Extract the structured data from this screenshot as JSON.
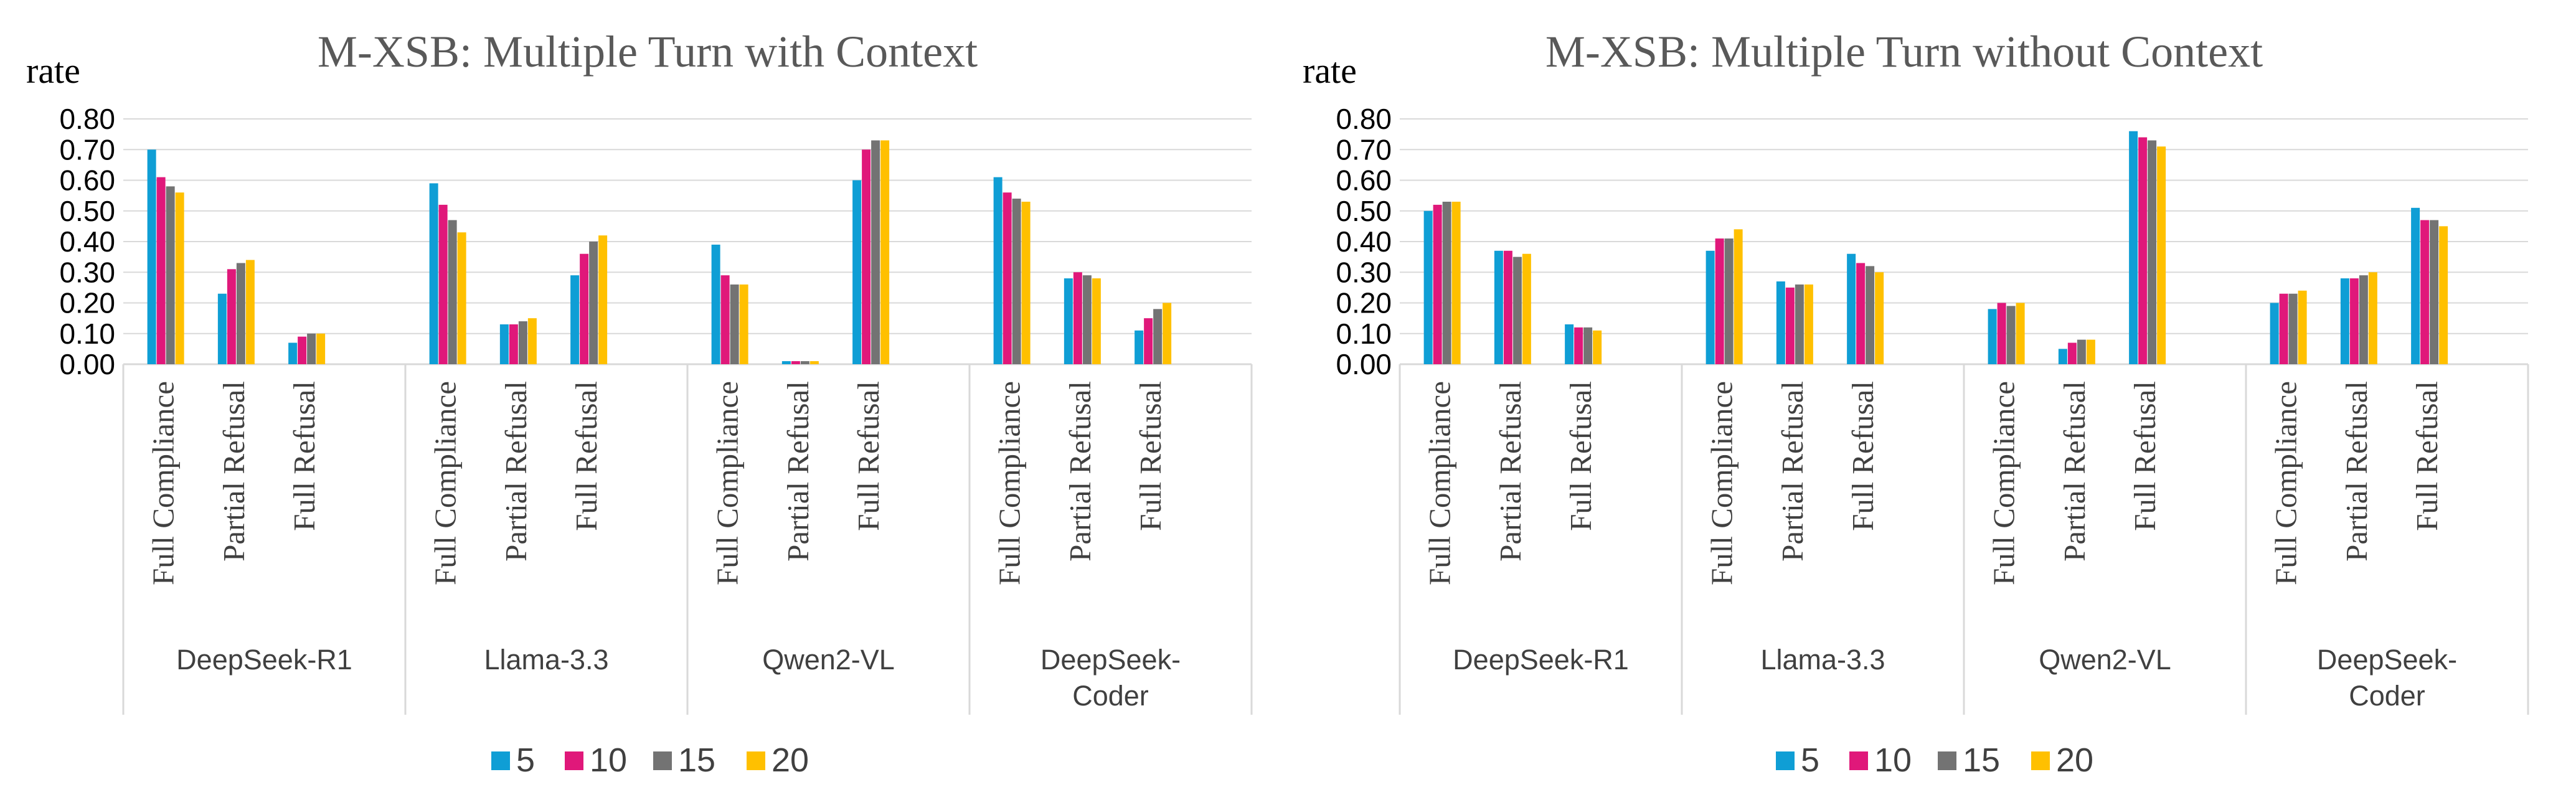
{
  "chart_data": [
    {
      "type": "bar",
      "title": "M-XSB: Multiple Turn with Context",
      "ylabel": "rate",
      "xlabel": "",
      "ylim": [
        0,
        0.8
      ],
      "yticks": [
        "0.00",
        "0.10",
        "0.20",
        "0.30",
        "0.40",
        "0.50",
        "0.60",
        "0.70",
        "0.80"
      ],
      "categories": [
        "Full Compliance",
        "Partial Refusal",
        "Full Refusal"
      ],
      "groups": [
        "DeepSeek-R1",
        "Llama-3.3",
        "Qwen2-VL",
        "DeepSeek-Coder"
      ],
      "series": [
        {
          "name": "5",
          "values": [
            [
              0.7,
              0.23,
              0.07
            ],
            [
              0.59,
              0.13,
              0.29
            ],
            [
              0.39,
              0.01,
              0.6
            ],
            [
              0.61,
              0.28,
              0.11
            ]
          ]
        },
        {
          "name": "10",
          "values": [
            [
              0.61,
              0.31,
              0.09
            ],
            [
              0.52,
              0.13,
              0.36
            ],
            [
              0.29,
              0.01,
              0.7
            ],
            [
              0.56,
              0.3,
              0.15
            ]
          ]
        },
        {
          "name": "15",
          "values": [
            [
              0.58,
              0.33,
              0.1
            ],
            [
              0.47,
              0.14,
              0.4
            ],
            [
              0.26,
              0.01,
              0.73
            ],
            [
              0.54,
              0.29,
              0.18
            ]
          ]
        },
        {
          "name": "20",
          "values": [
            [
              0.56,
              0.34,
              0.1
            ],
            [
              0.43,
              0.15,
              0.42
            ],
            [
              0.26,
              0.01,
              0.73
            ],
            [
              0.53,
              0.28,
              0.2
            ]
          ]
        }
      ]
    },
    {
      "type": "bar",
      "title": "M-XSB: Multiple Turn without Context",
      "ylabel": "rate",
      "xlabel": "",
      "ylim": [
        0,
        0.8
      ],
      "yticks": [
        "0.00",
        "0.10",
        "0.20",
        "0.30",
        "0.40",
        "0.50",
        "0.60",
        "0.70",
        "0.80"
      ],
      "categories": [
        "Full Compliance",
        "Partial Refusal",
        "Full Refusal"
      ],
      "groups": [
        "DeepSeek-R1",
        "Llama-3.3",
        "Qwen2-VL",
        "DeepSeek-Coder"
      ],
      "series": [
        {
          "name": "5",
          "values": [
            [
              0.5,
              0.37,
              0.13
            ],
            [
              0.37,
              0.27,
              0.36
            ],
            [
              0.18,
              0.05,
              0.76
            ],
            [
              0.2,
              0.28,
              0.51
            ]
          ]
        },
        {
          "name": "10",
          "values": [
            [
              0.52,
              0.37,
              0.12
            ],
            [
              0.41,
              0.25,
              0.33
            ],
            [
              0.2,
              0.07,
              0.74
            ],
            [
              0.23,
              0.28,
              0.47
            ]
          ]
        },
        {
          "name": "15",
          "values": [
            [
              0.53,
              0.35,
              0.12
            ],
            [
              0.41,
              0.26,
              0.32
            ],
            [
              0.19,
              0.08,
              0.73
            ],
            [
              0.23,
              0.29,
              0.47
            ]
          ]
        },
        {
          "name": "20",
          "values": [
            [
              0.53,
              0.36,
              0.11
            ],
            [
              0.44,
              0.26,
              0.3
            ],
            [
              0.2,
              0.08,
              0.71
            ],
            [
              0.24,
              0.3,
              0.45
            ]
          ]
        }
      ]
    }
  ],
  "colors": {
    "series": [
      "#0f9ed5",
      "#e0187a",
      "#737373",
      "#ffc000"
    ],
    "grid": "#d9d9d9",
    "title": "#595959"
  }
}
